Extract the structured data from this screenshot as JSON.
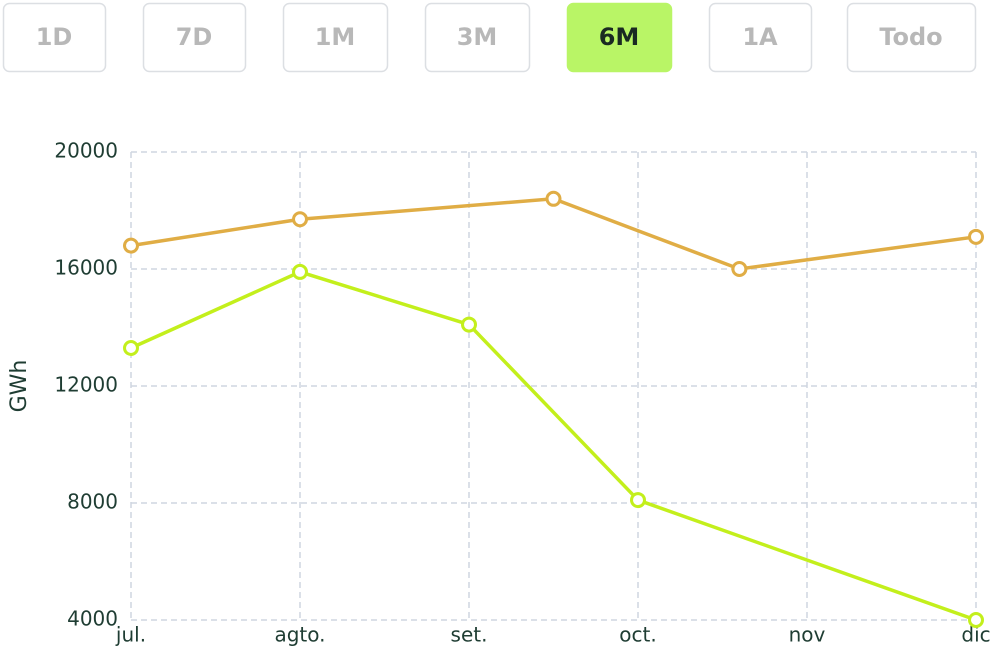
{
  "buttons": [
    "1D",
    "7D",
    "1M",
    "3M",
    "6M",
    "1A",
    "Todo"
  ],
  "selected_button": 4,
  "chart_data": {
    "type": "line",
    "y_label": "GWh",
    "xlim": [
      0,
      5
    ],
    "xticks": [
      {
        "value": 0,
        "label": "jul."
      },
      {
        "value": 1,
        "label": "agto."
      },
      {
        "value": 2,
        "label": "set."
      },
      {
        "value": 3,
        "label": "oct."
      },
      {
        "value": 4,
        "label": "nov"
      },
      {
        "value": 5,
        "label": "dic"
      }
    ],
    "ylim": [
      4000,
      20000
    ],
    "yticks": [
      4000,
      8000,
      12000,
      16000,
      20000
    ],
    "grid": true,
    "series": [
      {
        "color": "#e0ad45",
        "x": [
          0,
          1,
          2.5,
          3.6,
          5
        ],
        "values": [
          16800,
          17700,
          18400,
          16000,
          17100
        ]
      },
      {
        "color": "#c3ef1c",
        "x": [
          0,
          1,
          2,
          3,
          5
        ],
        "values": [
          13300,
          15900,
          14100,
          8100,
          4000
        ]
      }
    ]
  }
}
